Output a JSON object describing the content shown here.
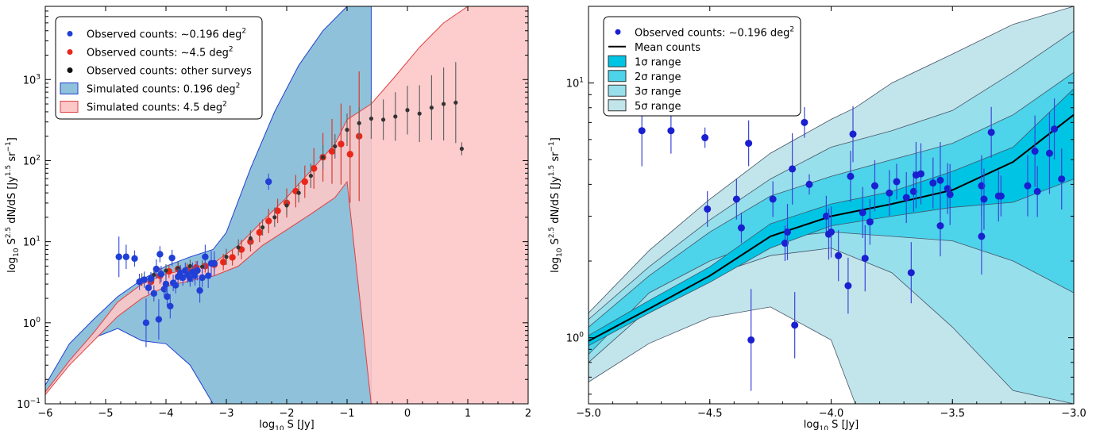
{
  "chart_data": [
    {
      "type": "scatter",
      "xlabel": "log10 S [Jy]",
      "ylabel": "log10 S^2.5 dN/dS [Jy^1.5 sr^-1]",
      "xlim": [
        -6,
        2
      ],
      "ylim": [
        0.1,
        8000
      ],
      "yscale": "log",
      "grid": false,
      "legend_position": "top-left",
      "x_ticks": [
        -6,
        -5,
        -4,
        -3,
        -2,
        -1,
        0,
        1,
        2
      ],
      "x_tick_labels": [
        "−6",
        "−5",
        "−4",
        "−3",
        "−2",
        "−1",
        "0",
        "1",
        "2"
      ],
      "y_tick_labels": [
        "10−1",
        "100",
        "101",
        "102",
        "103"
      ],
      "legend": [
        {
          "label": "Observed counts: ~0.196 deg2",
          "kind": "marker",
          "color": "#1f3fd6"
        },
        {
          "label": "Observed counts: ~4.5 deg2",
          "kind": "marker",
          "color": "#e8271a"
        },
        {
          "label": "Observed counts: other surveys",
          "kind": "marker",
          "color": "#111111"
        },
        {
          "label": "Simulated counts: 0.196 deg2",
          "kind": "patch",
          "color": "#8fc1da",
          "edge": "#2040d0"
        },
        {
          "label": "Simulated counts: 4.5 deg2",
          "kind": "patch",
          "color": "#fdc8c8",
          "edge": "#e04040"
        }
      ],
      "series": [
        {
          "name": "Simulated counts: 0.196 deg2",
          "type": "band",
          "x": [
            -6.0,
            -5.6,
            -5.2,
            -4.8,
            -4.4,
            -4.0,
            -3.6,
            -3.22,
            -3.0,
            -2.6,
            -2.2,
            -1.8,
            -1.4,
            -1.0,
            -0.6
          ],
          "lower": [
            0.14,
            0.32,
            0.65,
            0.85,
            0.6,
            0.55,
            0.3,
            0.1,
            0.1,
            0.1,
            0.1,
            0.1,
            0.1,
            0.1,
            0.1
          ],
          "upper": [
            0.17,
            0.55,
            1.1,
            2.1,
            3.4,
            5.0,
            6.5,
            8.0,
            13,
            80,
            400,
            1500,
            4000,
            8000,
            8000
          ]
        },
        {
          "name": "Simulated counts: 4.5 deg2",
          "type": "band",
          "x": [
            -6.0,
            -5.6,
            -5.2,
            -4.8,
            -4.4,
            -4.0,
            -3.6,
            -3.2,
            -2.8,
            -2.4,
            -2.0,
            -1.6,
            -1.2,
            -1.0,
            -0.6,
            -0.2,
            0.2,
            0.6,
            1.0,
            1.4,
            2.0
          ],
          "lower": [
            0.13,
            0.3,
            0.6,
            1.2,
            2.0,
            2.8,
            3.3,
            3.8,
            5.0,
            9.0,
            14,
            22,
            35,
            55,
            0.1,
            0.1,
            0.1,
            0.1,
            0.1,
            0.1,
            0.1
          ],
          "upper": [
            0.14,
            0.34,
            0.75,
            1.8,
            3.0,
            4.0,
            4.6,
            5.5,
            9.0,
            18,
            35,
            75,
            160,
            320,
            500,
            1100,
            2500,
            5000,
            8000,
            8000,
            8000
          ]
        },
        {
          "name": "Observed counts: ~0.196 deg2",
          "type": "scatter",
          "x": [
            -4.78,
            -4.66,
            -4.52,
            -4.44,
            -4.36,
            -4.33,
            -4.29,
            -4.25,
            -4.2,
            -4.16,
            -4.12,
            -4.08,
            -4.03,
            -3.98,
            -3.93,
            -3.88,
            -3.84,
            -3.8,
            -3.76,
            -3.72,
            -3.68,
            -3.64,
            -3.6,
            -3.56,
            -3.52,
            -3.48,
            -3.44,
            -3.4,
            -3.35,
            -3.3,
            -3.25,
            -3.2,
            -4.1,
            -4.0,
            -3.9,
            -2.3
          ],
          "y": [
            6.5,
            6.5,
            6.2,
            3.2,
            3.4,
            1.0,
            2.7,
            3.5,
            2.3,
            4.6,
            1.1,
            4.0,
            2.6,
            2.1,
            1.6,
            3.1,
            2.9,
            3.7,
            4.1,
            3.6,
            4.4,
            3.9,
            3.5,
            4.2,
            3.8,
            4.4,
            2.5,
            3.6,
            6.5,
            3.8,
            5.4,
            5.4,
            7.0,
            3.0,
            6.3,
            55
          ],
          "yerr": [
            0.25,
            0.15,
            0.1,
            0.1,
            0.1,
            0.3,
            0.08,
            0.08,
            0.1,
            0.12,
            0.25,
            0.1,
            0.1,
            0.12,
            0.15,
            0.1,
            0.1,
            0.1,
            0.1,
            0.1,
            0.1,
            0.1,
            0.1,
            0.12,
            0.12,
            0.12,
            0.15,
            0.12,
            0.15,
            0.15,
            0.15,
            0.15,
            0.1,
            0.12,
            0.1,
            0.1
          ]
        },
        {
          "name": "Observed counts: ~4.5 deg2",
          "type": "scatter",
          "x": [
            -4.25,
            -4.1,
            -3.95,
            -3.8,
            -3.65,
            -3.5,
            -3.35,
            -3.2,
            -3.05,
            -2.9,
            -2.75,
            -2.6,
            -2.45,
            -2.3,
            -2.15,
            -2.0,
            -1.85,
            -1.7,
            -1.55,
            -1.4,
            -1.25,
            -1.1,
            -0.95,
            -0.8
          ],
          "y": [
            3.2,
            3.8,
            4.3,
            4.6,
            4.5,
            4.8,
            5.0,
            5.2,
            5.6,
            6.4,
            8.0,
            10,
            13,
            18,
            24,
            30,
            42,
            55,
            80,
            110,
            130,
            160,
            120,
            200
          ],
          "yerr": [
            0.1,
            0.1,
            0.08,
            0.08,
            0.08,
            0.08,
            0.08,
            0.08,
            0.1,
            0.1,
            0.12,
            0.12,
            0.12,
            0.15,
            0.15,
            0.18,
            0.2,
            0.2,
            0.25,
            0.3,
            0.4,
            0.5,
            0.6,
            0.8
          ]
        },
        {
          "name": "Observed counts: other surveys",
          "type": "scatter",
          "x": [
            -4.4,
            -4.2,
            -4.0,
            -3.8,
            -3.6,
            -3.4,
            -3.2,
            -3.0,
            -2.8,
            -2.6,
            -2.4,
            -2.2,
            -2.0,
            -1.8,
            -1.6,
            -1.4,
            -1.2,
            -1.0,
            -0.8,
            -0.6,
            -0.4,
            -0.2,
            0.0,
            0.2,
            0.4,
            0.6,
            0.8,
            0.9
          ],
          "y": [
            3.4,
            3.9,
            4.4,
            4.7,
            5.0,
            4.9,
            5.4,
            6.5,
            8.5,
            11,
            15,
            20,
            28,
            40,
            65,
            110,
            150,
            240,
            290,
            330,
            320,
            350,
            420,
            380,
            450,
            500,
            520,
            140
          ],
          "yerr": [
            0.08,
            0.08,
            0.08,
            0.08,
            0.08,
            0.08,
            0.08,
            0.1,
            0.1,
            0.1,
            0.1,
            0.12,
            0.12,
            0.12,
            0.15,
            0.15,
            0.15,
            0.2,
            0.2,
            0.25,
            0.25,
            0.3,
            0.3,
            0.35,
            0.4,
            0.45,
            0.5,
            0.08
          ]
        }
      ]
    },
    {
      "type": "scatter",
      "xlabel": "log10 S [Jy]",
      "ylabel": "log10 S^2.5 dN/dS [Jy^1.5 sr^-1]",
      "xlim": [
        -5.0,
        -3.0
      ],
      "ylim": [
        0.55,
        20
      ],
      "yscale": "log",
      "grid": false,
      "legend_position": "top-left",
      "x_ticks": [
        -5.0,
        -4.5,
        -4.0,
        -3.5,
        -3.0
      ],
      "x_tick_labels": [
        "−5.0",
        "−4.5",
        "−4.0",
        "−3.5",
        "−3.0"
      ],
      "y_tick_labels": [
        "100",
        "101"
      ],
      "legend": [
        {
          "label": "Observed counts: ~0.196 deg2",
          "kind": "marker",
          "color": "#1a1fd0"
        },
        {
          "label": "Mean counts",
          "kind": "line",
          "color": "#000000"
        },
        {
          "label": "1σ range",
          "kind": "patch",
          "color": "#00c4e4"
        },
        {
          "label": "2σ range",
          "kind": "patch",
          "color": "#4dd3ea"
        },
        {
          "label": "3σ range",
          "kind": "patch",
          "color": "#98dfec"
        },
        {
          "label": "5σ range",
          "kind": "patch",
          "color": "#c2e4eb"
        }
      ],
      "mean": {
        "x": [
          -5.0,
          -4.75,
          -4.5,
          -4.25,
          -4.0,
          -3.75,
          -3.5,
          -3.25,
          -3.0
        ],
        "y": [
          0.97,
          1.3,
          1.75,
          2.5,
          3.0,
          3.35,
          3.8,
          4.9,
          7.5
        ]
      },
      "bands": [
        {
          "name": "5σ range",
          "x": [
            -5.0,
            -4.75,
            -4.5,
            -4.25,
            -4.0,
            -3.9,
            -3.9,
            -3.75,
            -3.5,
            -3.25,
            -3.0
          ],
          "lower": [
            0.67,
            0.95,
            1.2,
            1.32,
            0.98,
            0.55,
            0.55,
            0.55,
            0.55,
            0.55,
            0.55
          ],
          "upper": [
            1.25,
            2.2,
            3.5,
            5.3,
            7.2,
            8.0,
            8.0,
            10,
            13,
            17,
            20
          ]
        },
        {
          "name": "3σ range",
          "x": [
            -5.0,
            -4.75,
            -4.5,
            -4.25,
            -4.0,
            -3.75,
            -3.5,
            -3.25,
            -3.0
          ],
          "lower": [
            0.8,
            1.3,
            1.75,
            2.1,
            2.25,
            1.8,
            1.1,
            0.62,
            0.55
          ],
          "upper": [
            1.18,
            1.9,
            2.9,
            4.2,
            5.6,
            6.5,
            7.8,
            11,
            16
          ]
        },
        {
          "name": "2σ range",
          "x": [
            -5.0,
            -4.75,
            -4.5,
            -4.25,
            -4.0,
            -3.75,
            -3.5,
            -3.25,
            -3.0
          ],
          "lower": [
            0.86,
            1.5,
            2.0,
            2.45,
            2.6,
            2.5,
            2.4,
            2.0,
            1.5
          ],
          "upper": [
            1.1,
            1.75,
            2.6,
            3.6,
            4.3,
            5.0,
            5.8,
            7.5,
            11
          ]
        },
        {
          "name": "1σ range",
          "x": [
            -5.0,
            -4.75,
            -4.5,
            -4.25,
            -4.0,
            -3.75,
            -3.5,
            -3.25,
            -3.0
          ],
          "lower": [
            0.93,
            1.25,
            1.65,
            2.25,
            2.75,
            3.0,
            3.25,
            3.4,
            4.2
          ],
          "upper": [
            1.02,
            1.4,
            1.9,
            2.8,
            3.35,
            3.75,
            4.5,
            5.6,
            9.5
          ]
        }
      ],
      "observed": {
        "x": [
          -4.78,
          -4.66,
          -4.52,
          -4.51,
          -4.39,
          -4.37,
          -4.34,
          -4.33,
          -4.24,
          -4.19,
          -4.18,
          -4.16,
          -4.15,
          -4.11,
          -4.09,
          -4.02,
          -4.01,
          -4.0,
          -3.97,
          -3.93,
          -3.92,
          -3.91,
          -3.87,
          -3.86,
          -3.84,
          -3.82,
          -3.76,
          -3.73,
          -3.69,
          -3.67,
          -3.66,
          -3.65,
          -3.63,
          -3.58,
          -3.55,
          -3.55,
          -3.52,
          -3.51,
          -3.38,
          -3.38,
          -3.37,
          -3.34,
          -3.31,
          -3.3,
          -3.19,
          -3.16,
          -3.15,
          -3.1,
          -3.08,
          -3.05
        ],
        "y": [
          6.5,
          6.5,
          6.1,
          3.2,
          3.5,
          2.7,
          5.8,
          0.98,
          3.5,
          2.35,
          2.6,
          4.6,
          1.12,
          7.0,
          4.0,
          3.0,
          2.55,
          2.6,
          2.1,
          1.6,
          4.3,
          6.3,
          3.1,
          2.05,
          2.85,
          3.95,
          3.7,
          4.1,
          3.55,
          1.8,
          3.75,
          4.35,
          4.4,
          4.05,
          4.15,
          2.75,
          3.85,
          3.65,
          2.5,
          3.95,
          3.5,
          6.4,
          3.6,
          3.6,
          3.95,
          5.4,
          3.75,
          5.3,
          6.6,
          4.2
        ],
        "yerr": [
          0.14,
          0.09,
          0.04,
          0.07,
          0.08,
          0.06,
          0.09,
          0.2,
          0.07,
          0.07,
          0.11,
          0.14,
          0.13,
          0.06,
          0.04,
          0.08,
          0.1,
          0.1,
          0.1,
          0.11,
          0.1,
          0.11,
          0.1,
          0.13,
          0.09,
          0.1,
          0.09,
          0.07,
          0.1,
          0.12,
          0.08,
          0.13,
          0.12,
          0.1,
          0.15,
          0.12,
          0.1,
          0.12,
          0.15,
          0.12,
          0.12,
          0.1,
          0.1,
          0.08,
          0.12,
          0.14,
          0.1,
          0.16,
          0.12,
          0.12
        ]
      }
    }
  ]
}
